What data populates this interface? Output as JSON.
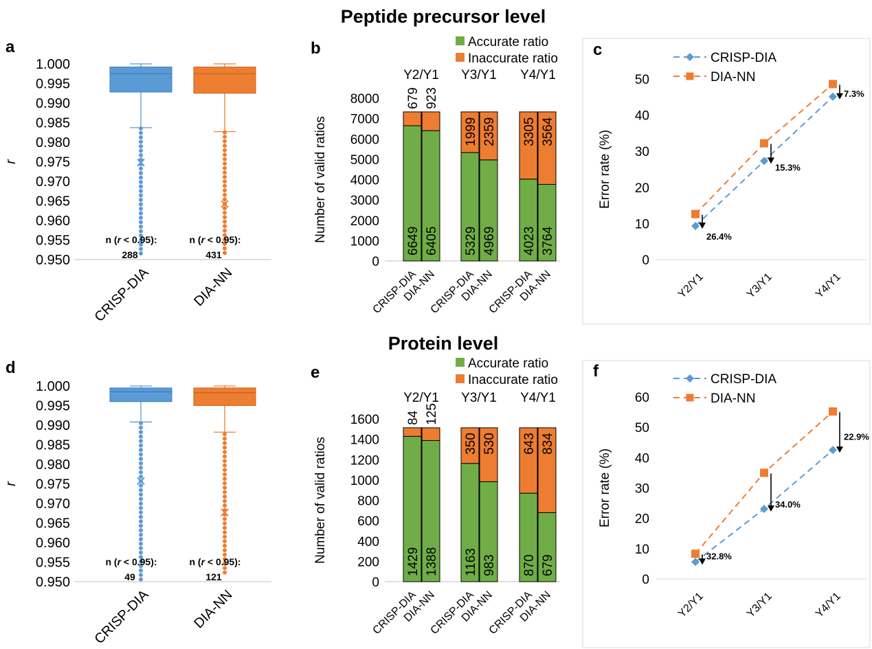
{
  "titles": {
    "top": "Peptide precursor level",
    "bottom": "Protein level"
  },
  "colors": {
    "crisp": "#5b9bd5",
    "crisp_dark": "#3d7cc2",
    "dianm": "#ed7d31",
    "dianm_dark": "#c8651f",
    "accurate": "#70ad47",
    "inaccurate": "#ed7d31",
    "arrow": "#000000"
  },
  "chart_data": [
    {
      "id": "a",
      "panel_label": "a",
      "type": "box",
      "ylabel": "r",
      "ylim": [
        0.95,
        1.0
      ],
      "yticks": [
        "0.950",
        "0.955",
        "0.960",
        "0.965",
        "0.970",
        "0.975",
        "0.980",
        "0.985",
        "0.990",
        "0.995",
        "1.000"
      ],
      "categories": [
        "CRISP-DIA",
        "DIA-NN"
      ],
      "boxes": [
        {
          "name": "CRISP-DIA",
          "q1": 0.9928,
          "median": 0.9975,
          "q3": 0.9992,
          "whisker_low": 0.9837,
          "whisker_high": 1.0,
          "mean": 0.9748,
          "outliers_from": 0.9513,
          "outliers_to": 0.9835,
          "n_label": "n (r < 0.95):",
          "n_value": "288"
        },
        {
          "name": "DIA-NN",
          "q1": 0.9925,
          "median": 0.9975,
          "q3": 0.9992,
          "whisker_low": 0.9827,
          "whisker_high": 1.0,
          "mean": 0.9642,
          "outliers_from": 0.9508,
          "outliers_to": 0.9825,
          "n_label": "n (r < 0.95):",
          "n_value": "431"
        }
      ]
    },
    {
      "id": "b",
      "panel_label": "b",
      "type": "bar",
      "stacked": true,
      "ylabel": "Number of valid ratios",
      "ylim": [
        0,
        8000
      ],
      "yticks": [
        "0",
        "1000",
        "2000",
        "3000",
        "4000",
        "5000",
        "6000",
        "7000",
        "8000"
      ],
      "legend": [
        "Accurate ratio",
        "Inaccurate ratio"
      ],
      "groups": [
        "Y2/Y1",
        "Y3/Y1",
        "Y4/Y1"
      ],
      "categories": [
        "CRISP-DIA",
        "DIA-NN",
        "CRISP-DIA",
        "DIA-NN",
        "CRISP-DIA",
        "DIA-NN"
      ],
      "series": [
        {
          "name": "Accurate ratio",
          "values": [
            6649,
            6405,
            5329,
            4969,
            4023,
            3764
          ]
        },
        {
          "name": "Inaccurate ratio",
          "values": [
            679,
            923,
            1999,
            2359,
            3305,
            3564
          ]
        }
      ]
    },
    {
      "id": "c",
      "panel_label": "c",
      "type": "line",
      "ylabel": "Error rate (%)",
      "ylim": [
        0,
        50
      ],
      "yticks": [
        "0",
        "10",
        "20",
        "30",
        "40",
        "50"
      ],
      "categories": [
        "Y2/Y1",
        "Y3/Y1",
        "Y4/Y1"
      ],
      "series": [
        {
          "name": "CRISP-DIA",
          "values": [
            9.3,
            27.3,
            45.1
          ]
        },
        {
          "name": "DIA-NN",
          "values": [
            12.6,
            32.2,
            48.6
          ]
        }
      ],
      "annotations": [
        "26.4%",
        "15.3%",
        "7.3%"
      ]
    },
    {
      "id": "d",
      "panel_label": "d",
      "type": "box",
      "ylabel": "r",
      "ylim": [
        0.95,
        1.0
      ],
      "yticks": [
        "0.950",
        "0.955",
        "0.960",
        "0.965",
        "0.970",
        "0.975",
        "0.980",
        "0.985",
        "0.990",
        "0.995",
        "1.000"
      ],
      "categories": [
        "CRISP-DIA",
        "DIA-NN"
      ],
      "boxes": [
        {
          "name": "CRISP-DIA",
          "q1": 0.996,
          "median": 0.9985,
          "q3": 0.9995,
          "whisker_low": 0.9908,
          "whisker_high": 1.0,
          "mean": 0.9757,
          "outliers_from": 0.95,
          "outliers_to": 0.9905,
          "n_label": "n (r < 0.95):",
          "n_value": "49"
        },
        {
          "name": "DIA-NN",
          "q1": 0.995,
          "median": 0.9983,
          "q3": 0.9995,
          "whisker_low": 0.9882,
          "whisker_high": 1.0,
          "mean": 0.9677,
          "outliers_from": 0.9517,
          "outliers_to": 0.9877,
          "n_label": "n (r < 0.95):",
          "n_value": "121"
        }
      ]
    },
    {
      "id": "e",
      "panel_label": "e",
      "type": "bar",
      "stacked": true,
      "ylabel": "Number of valid ratios",
      "ylim": [
        0,
        1600
      ],
      "yticks": [
        "0",
        "200",
        "400",
        "600",
        "800",
        "1000",
        "1200",
        "1400",
        "1600"
      ],
      "legend": [
        "Accurate ratio",
        "Inaccurate ratio"
      ],
      "groups": [
        "Y2/Y1",
        "Y3/Y1",
        "Y4/Y1"
      ],
      "categories": [
        "CRISP-DIA",
        "DIA-NN",
        "CRISP-DIA",
        "DIA-NN",
        "CRISP-DIA",
        "DIA-NN"
      ],
      "series": [
        {
          "name": "Accurate ratio",
          "values": [
            1429,
            1388,
            1163,
            983,
            870,
            679
          ]
        },
        {
          "name": "Inaccurate ratio",
          "values": [
            84,
            125,
            350,
            530,
            643,
            834
          ]
        }
      ]
    },
    {
      "id": "f",
      "panel_label": "f",
      "type": "line",
      "ylabel": "Error rate (%)",
      "ylim": [
        0,
        60
      ],
      "yticks": [
        "0",
        "10",
        "20",
        "30",
        "40",
        "50",
        "60"
      ],
      "categories": [
        "Y2/Y1",
        "Y3/Y1",
        "Y4/Y1"
      ],
      "series": [
        {
          "name": "CRISP-DIA",
          "values": [
            5.6,
            23.1,
            42.5
          ]
        },
        {
          "name": "DIA-NN",
          "values": [
            8.3,
            35.0,
            55.2
          ]
        }
      ],
      "annotations": [
        "32.8%",
        "34.0%",
        "22.9%"
      ]
    }
  ]
}
